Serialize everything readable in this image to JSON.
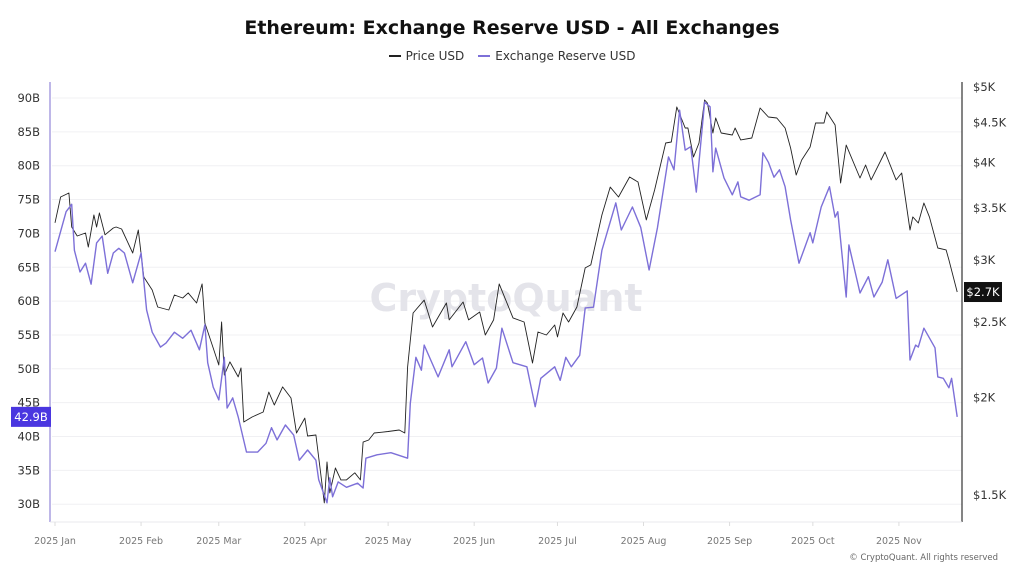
{
  "chart_data": {
    "type": "line",
    "title": "Ethereum: Exchange Reserve USD - All Exchanges",
    "legend_placement": "top-center",
    "grid": "horizontal",
    "x_ticks": [
      "2025 Jan",
      "2025 Feb",
      "2025 Mar",
      "2025 Apr",
      "2025 May",
      "2025 Jun",
      "2025 Jul",
      "2025 Aug",
      "2025 Sep",
      "2025 Oct",
      "2025 Nov"
    ],
    "x_tick_dates": [
      "2025-01-01",
      "2025-02-01",
      "2025-03-01",
      "2025-04-01",
      "2025-05-01",
      "2025-06-01",
      "2025-07-01",
      "2025-08-01",
      "2025-09-01",
      "2025-10-01",
      "2025-11-01"
    ],
    "left_axis": {
      "scale": "linear",
      "range": [
        26,
        92
      ],
      "ticks": [
        30,
        35,
        40,
        45,
        50,
        55,
        60,
        65,
        70,
        75,
        80,
        85,
        90
      ],
      "tick_labels": [
        "30B",
        "35B",
        "40B",
        "45B",
        "50B",
        "55B",
        "60B",
        "65B",
        "70B",
        "75B",
        "80B",
        "85B",
        "90B"
      ],
      "current_label": "42.9B",
      "current_value": 42.9,
      "color": "#4a36e0"
    },
    "right_axis": {
      "scale": "log",
      "range": [
        1350,
        5050
      ],
      "ticks": [
        1500,
        2000,
        2500,
        3000,
        3500,
        4000,
        4500,
        5000
      ],
      "tick_labels": [
        "$1.5K",
        "$2K",
        "$2.5K",
        "$3K",
        "$3.5K",
        "$4K",
        "$4.5K",
        "$5K"
      ],
      "current_label": "$2.7K",
      "current_value": 2731,
      "color": "#111111"
    },
    "series": [
      {
        "name": "Price USD",
        "axis": "right",
        "color": "#222222",
        "dates": [
          "2025-01-01",
          "2025-01-03",
          "2025-01-06",
          "2025-01-07",
          "2025-01-09",
          "2025-01-12",
          "2025-01-13",
          "2025-01-15",
          "2025-01-16",
          "2025-01-17",
          "2025-01-19",
          "2025-01-22",
          "2025-01-23",
          "2025-01-25",
          "2025-01-29",
          "2025-01-31",
          "2025-02-02",
          "2025-02-05",
          "2025-02-07",
          "2025-02-11",
          "2025-02-13",
          "2025-02-16",
          "2025-02-18",
          "2025-02-21",
          "2025-02-23",
          "2025-02-24",
          "2025-02-27",
          "2025-03-01",
          "2025-03-02",
          "2025-03-03",
          "2025-03-05",
          "2025-03-08",
          "2025-03-09",
          "2025-03-10",
          "2025-03-13",
          "2025-03-17",
          "2025-03-19",
          "2025-03-21",
          "2025-03-24",
          "2025-03-27",
          "2025-03-29",
          "2025-04-01",
          "2025-04-02",
          "2025-04-05",
          "2025-04-07",
          "2025-04-08",
          "2025-04-09",
          "2025-04-10",
          "2025-04-12",
          "2025-04-14",
          "2025-04-16",
          "2025-04-19",
          "2025-04-21",
          "2025-04-22",
          "2025-04-24",
          "2025-04-26",
          "2025-05-01",
          "2025-05-05",
          "2025-05-07",
          "2025-05-08",
          "2025-05-10",
          "2025-05-14",
          "2025-05-17",
          "2025-05-22",
          "2025-05-23",
          "2025-05-28",
          "2025-05-30",
          "2025-06-03",
          "2025-06-05",
          "2025-06-08",
          "2025-06-10",
          "2025-06-15",
          "2025-06-19",
          "2025-06-22",
          "2025-06-24",
          "2025-06-27",
          "2025-06-30",
          "2025-07-01",
          "2025-07-03",
          "2025-07-05",
          "2025-07-08",
          "2025-07-11",
          "2025-07-13",
          "2025-07-17",
          "2025-07-20",
          "2025-07-23",
          "2025-07-27",
          "2025-07-30",
          "2025-08-02",
          "2025-08-05",
          "2025-08-09",
          "2025-08-11",
          "2025-08-13",
          "2025-08-16",
          "2025-08-17",
          "2025-08-19",
          "2025-08-21",
          "2025-08-23",
          "2025-08-24",
          "2025-08-26",
          "2025-08-27",
          "2025-08-29",
          "2025-09-02",
          "2025-09-03",
          "2025-09-05",
          "2025-09-09",
          "2025-09-12",
          "2025-09-15",
          "2025-09-18",
          "2025-09-21",
          "2025-09-23",
          "2025-09-25",
          "2025-09-27",
          "2025-09-30",
          "2025-10-02",
          "2025-10-05",
          "2025-10-06",
          "2025-10-09",
          "2025-10-11",
          "2025-10-13",
          "2025-10-18",
          "2025-10-20",
          "2025-10-22",
          "2025-10-27",
          "2025-10-31",
          "2025-11-02",
          "2025-11-05",
          "2025-11-06",
          "2025-11-08",
          "2025-11-10",
          "2025-11-12",
          "2025-11-15",
          "2025-11-18",
          "2025-11-19",
          "2025-11-22"
        ],
        "values": [
          3350,
          3614,
          3657,
          3308,
          3222,
          3250,
          3119,
          3428,
          3308,
          3448,
          3233,
          3299,
          3308,
          3289,
          3064,
          3279,
          2855,
          2747,
          2613,
          2590,
          2707,
          2683,
          2724,
          2644,
          2797,
          2492,
          2315,
          2202,
          2500,
          2138,
          2222,
          2126,
          2183,
          1861,
          1889,
          1917,
          2033,
          1957,
          2064,
          1998,
          1802,
          1883,
          1786,
          1791,
          1569,
          1466,
          1654,
          1510,
          1625,
          1569,
          1569,
          1602,
          1569,
          1754,
          1765,
          1802,
          1810,
          1818,
          1802,
          2189,
          2567,
          2667,
          2463,
          2644,
          2515,
          2652,
          2515,
          2575,
          2406,
          2515,
          2797,
          2530,
          2500,
          2215,
          2427,
          2406,
          2478,
          2392,
          2567,
          2500,
          2613,
          2932,
          2958,
          3428,
          3722,
          3614,
          3834,
          3778,
          3378,
          3690,
          4239,
          4251,
          4714,
          4430,
          4430,
          4067,
          4239,
          4812,
          4770,
          4366,
          4563,
          4366,
          4340,
          4430,
          4277,
          4302,
          4700,
          4576,
          4563,
          4430,
          4177,
          3857,
          4031,
          4189,
          4496,
          4496,
          4644,
          4470,
          3767,
          4213,
          3823,
          3972,
          3801,
          4127,
          3801,
          3880,
          3279,
          3408,
          3348,
          3551,
          3408,
          3110,
          3092,
          3002,
          2731
        ]
      },
      {
        "name": "Exchange Reserve USD",
        "axis": "left",
        "color": "#7d70d8",
        "dates": [
          "2025-01-01",
          "2025-01-05",
          "2025-01-07",
          "2025-01-08",
          "2025-01-10",
          "2025-01-12",
          "2025-01-14",
          "2025-01-16",
          "2025-01-18",
          "2025-01-20",
          "2025-01-22",
          "2025-01-24",
          "2025-01-26",
          "2025-01-29",
          "2025-02-01",
          "2025-02-03",
          "2025-02-05",
          "2025-02-08",
          "2025-02-10",
          "2025-02-13",
          "2025-02-16",
          "2025-02-19",
          "2025-02-22",
          "2025-02-24",
          "2025-02-25",
          "2025-02-27",
          "2025-03-01",
          "2025-03-03",
          "2025-03-04",
          "2025-03-06",
          "2025-03-08",
          "2025-03-11",
          "2025-03-15",
          "2025-03-18",
          "2025-03-20",
          "2025-03-22",
          "2025-03-25",
          "2025-03-28",
          "2025-03-30",
          "2025-04-02",
          "2025-04-05",
          "2025-04-06",
          "2025-04-09",
          "2025-04-10",
          "2025-04-11",
          "2025-04-13",
          "2025-04-16",
          "2025-04-20",
          "2025-04-22",
          "2025-04-23",
          "2025-04-27",
          "2025-05-02",
          "2025-05-08",
          "2025-05-09",
          "2025-05-11",
          "2025-05-13",
          "2025-05-14",
          "2025-05-19",
          "2025-05-23",
          "2025-05-24",
          "2025-05-29",
          "2025-06-01",
          "2025-06-04",
          "2025-06-06",
          "2025-06-09",
          "2025-06-11",
          "2025-06-15",
          "2025-06-20",
          "2025-06-23",
          "2025-06-25",
          "2025-06-30",
          "2025-07-02",
          "2025-07-04",
          "2025-07-06",
          "2025-07-09",
          "2025-07-11",
          "2025-07-14",
          "2025-07-17",
          "2025-07-22",
          "2025-07-24",
          "2025-07-28",
          "2025-07-31",
          "2025-08-03",
          "2025-08-06",
          "2025-08-10",
          "2025-08-12",
          "2025-08-14",
          "2025-08-16",
          "2025-08-18",
          "2025-08-20",
          "2025-08-21",
          "2025-08-23",
          "2025-08-25",
          "2025-08-26",
          "2025-08-27",
          "2025-08-30",
          "2025-09-02",
          "2025-09-04",
          "2025-09-05",
          "2025-09-08",
          "2025-09-12",
          "2025-09-13",
          "2025-09-15",
          "2025-09-17",
          "2025-09-19",
          "2025-09-21",
          "2025-09-23",
          "2025-09-26",
          "2025-09-28",
          "2025-09-30",
          "2025-10-01",
          "2025-10-04",
          "2025-10-07",
          "2025-10-09",
          "2025-10-10",
          "2025-10-13",
          "2025-10-14",
          "2025-10-18",
          "2025-10-21",
          "2025-10-23",
          "2025-10-26",
          "2025-10-28",
          "2025-10-31",
          "2025-11-04",
          "2025-11-05",
          "2025-11-07",
          "2025-11-08",
          "2025-11-10",
          "2025-11-14",
          "2025-11-15",
          "2025-11-17",
          "2025-11-19",
          "2025-11-20",
          "2025-11-22"
        ],
        "values": [
          67.3,
          73.2,
          74.3,
          67.5,
          64.3,
          65.6,
          62.5,
          68.6,
          69.6,
          64.1,
          67.1,
          67.8,
          67.1,
          62.7,
          67.1,
          58.7,
          55.4,
          53.2,
          53.8,
          55.4,
          54.5,
          55.7,
          52.8,
          56.5,
          50.9,
          47.3,
          45.4,
          51.7,
          44.2,
          45.7,
          42.9,
          37.7,
          37.7,
          39.0,
          41.3,
          39.5,
          41.7,
          40.2,
          36.5,
          38.0,
          36.5,
          33.6,
          30.2,
          33.9,
          31.1,
          33.3,
          32.5,
          33.1,
          32.4,
          36.8,
          37.3,
          37.6,
          36.8,
          44.9,
          51.7,
          49.8,
          53.5,
          48.8,
          52.8,
          50.3,
          54.0,
          50.6,
          51.6,
          47.9,
          50.1,
          56.0,
          50.9,
          50.3,
          44.4,
          48.6,
          50.3,
          48.3,
          51.7,
          50.3,
          52.0,
          59.0,
          59.1,
          67.5,
          74.5,
          70.5,
          73.9,
          70.9,
          64.6,
          70.8,
          81.3,
          79.4,
          88.2,
          82.3,
          82.8,
          76.1,
          80.5,
          89.4,
          88.7,
          79.1,
          82.6,
          78.2,
          75.7,
          77.6,
          75.4,
          74.9,
          75.7,
          81.9,
          80.5,
          78.3,
          79.4,
          76.9,
          72.0,
          65.6,
          67.8,
          70.1,
          68.6,
          73.9,
          76.9,
          72.4,
          73.2,
          60.6,
          68.3,
          61.2,
          63.6,
          60.6,
          62.8,
          66.1,
          60.4,
          61.5,
          51.3,
          53.5,
          53.2,
          56.0,
          53.1,
          48.8,
          48.6,
          47.2,
          48.6,
          42.9
        ]
      }
    ]
  },
  "watermark": "CryptoQuant",
  "copyright": "© CryptoQuant. All rights reserved"
}
